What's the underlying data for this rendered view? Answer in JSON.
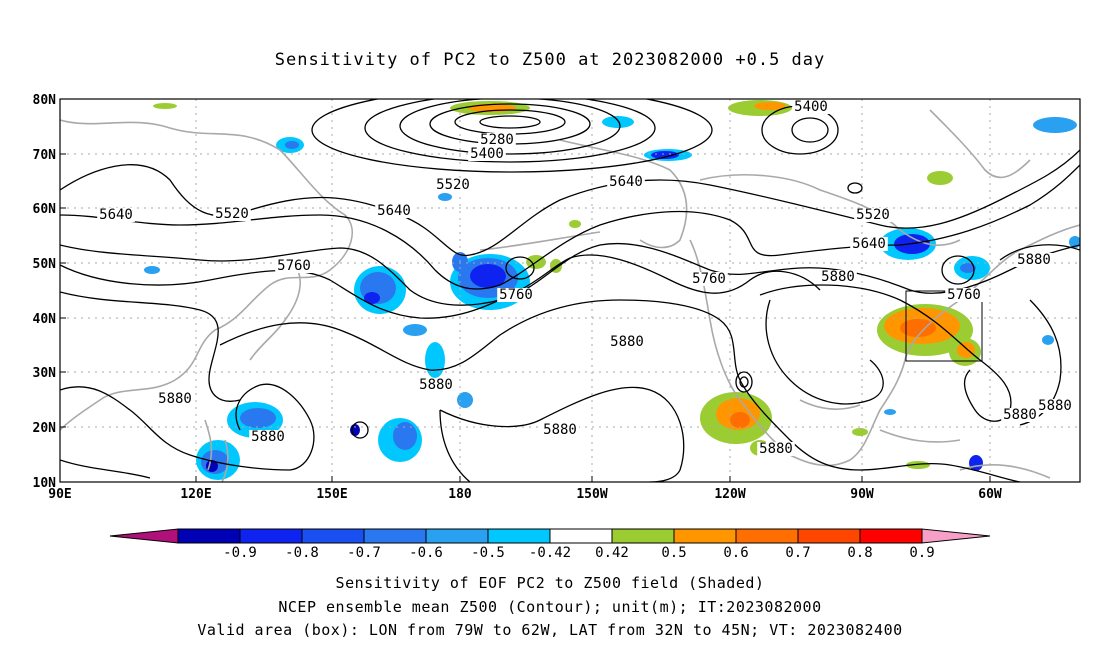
{
  "map": {
    "title": "Sensitivity of PC2 to Z500 at 2023082000 +0.5 day",
    "lat_labels": [
      "80N",
      "70N",
      "60N",
      "50N",
      "40N",
      "30N",
      "20N",
      "10N"
    ],
    "lon_labels": [
      "90E",
      "120E",
      "150E",
      "180",
      "150W",
      "120W",
      "90W",
      "60W"
    ],
    "contour_labels": [
      {
        "text": "5400"
      },
      {
        "text": "5280"
      },
      {
        "text": "5400"
      },
      {
        "text": "5520"
      },
      {
        "text": "5640"
      },
      {
        "text": "5520"
      },
      {
        "text": "5640"
      },
      {
        "text": "5640"
      },
      {
        "text": "5520"
      },
      {
        "text": "5640"
      },
      {
        "text": "5760"
      },
      {
        "text": "5760"
      },
      {
        "text": "5760"
      },
      {
        "text": "5880"
      },
      {
        "text": "5760"
      },
      {
        "text": "5880"
      },
      {
        "text": "5880"
      },
      {
        "text": "5880"
      },
      {
        "text": "5880"
      },
      {
        "text": "5880"
      },
      {
        "text": "5880"
      },
      {
        "text": "5880"
      },
      {
        "text": "5880"
      },
      {
        "text": "5880"
      }
    ],
    "colors": {
      "contour": "#000000",
      "coast": "#a9a9a9",
      "grid": "#aaaaaa",
      "box": "#000000"
    }
  },
  "colorbar": {
    "colors": [
      "#b0107a",
      "#0000b4",
      "#0f23f0",
      "#1a50f0",
      "#2a78f0",
      "#2aa0f0",
      "#00c8ff",
      "#ffffff",
      "#9bcd32",
      "#ff9600",
      "#ff6e00",
      "#ff4600",
      "#ff0000",
      "#f6a0c8"
    ],
    "labels": [
      "-0.9",
      "-0.8",
      "-0.7",
      "-0.6",
      "-0.5",
      "-0.42",
      "0.42",
      "0.5",
      "0.6",
      "0.7",
      "0.8",
      "0.9"
    ]
  },
  "footer": {
    "line1": "Sensitivity of EOF PC2 to Z500 field (Shaded)",
    "line2": "NCEP ensemble mean Z500 (Contour); unit(m); IT:2023082000",
    "line3": "Valid area (box): LON from 79W to 62W, LAT from 32N to 45N; VT: 2023082400"
  }
}
